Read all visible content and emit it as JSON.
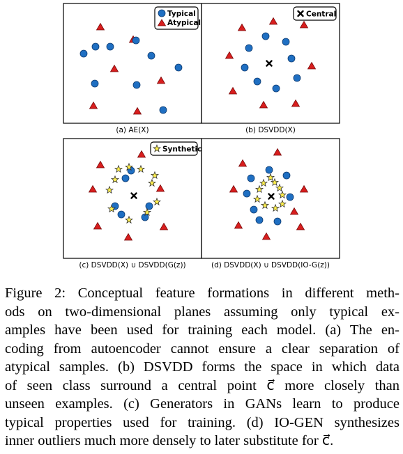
{
  "colors": {
    "typical": "#1f6fc2",
    "atypical": "#d81e1e",
    "synthetic": "#fff04d",
    "central": "#000000"
  },
  "panels": [
    {
      "label": "(a) AE(X)",
      "legend": [
        {
          "symbol": "circle",
          "text": "Typical"
        },
        {
          "symbol": "triangle",
          "text": "Atypical"
        }
      ],
      "points": {
        "circles": [
          [
            120,
            77
          ],
          [
            158,
            67
          ],
          [
            217,
            80
          ],
          [
            256,
            97
          ],
          [
            136,
            120
          ],
          [
            196,
            122
          ],
          [
            234,
            158
          ],
          [
            195,
            58
          ],
          [
            137,
            67
          ]
        ],
        "triangles": [
          [
            144,
            39
          ],
          [
            229,
            35
          ],
          [
            191,
            57
          ],
          [
            164,
            99
          ],
          [
            231,
            116
          ],
          [
            134,
            152
          ],
          [
            197,
            160
          ]
        ],
        "stars": [],
        "cross": null
      }
    },
    {
      "label": "(b) DSVDD(X)",
      "legend": [
        {
          "symbol": "cross",
          "text": "Central"
        }
      ],
      "points": {
        "circles": [
          [
            381,
            52
          ],
          [
            410,
            60
          ],
          [
            357,
            69
          ],
          [
            418,
            84
          ],
          [
            351,
            97
          ],
          [
            426,
            112
          ],
          [
            369,
            117
          ],
          [
            396,
            127
          ]
        ],
        "triangles": [
          [
            347,
            40
          ],
          [
            436,
            36
          ],
          [
            329,
            80
          ],
          [
            447,
            95
          ],
          [
            334,
            131
          ],
          [
            378,
            151
          ],
          [
            424,
            149
          ],
          [
            392,
            31
          ]
        ],
        "stars": [],
        "cross": [
          386,
          91
        ]
      }
    },
    {
      "label": "(c) DSVDD(X) ∪ DSVDD(G(z))",
      "legend": [
        {
          "symbol": "star",
          "text": "Synthetic"
        }
      ],
      "points": {
        "circles": [
          [
            174,
            308
          ],
          [
            208,
            312
          ],
          [
            188,
            245
          ],
          [
            214,
            296
          ],
          [
            165,
            296
          ],
          [
            180,
            256
          ]
        ],
        "triangles": [
          [
            133,
            272
          ],
          [
            230,
            271
          ],
          [
            140,
            325
          ],
          [
            235,
            326
          ],
          [
            184,
            341
          ],
          [
            144,
            237
          ],
          [
            203,
            222
          ]
        ],
        "stars": [
          [
            170,
            243
          ],
          [
            202,
            243
          ],
          [
            218,
            263
          ],
          [
            225,
            290
          ],
          [
            211,
            305
          ],
          [
            185,
            316
          ],
          [
            160,
            300
          ],
          [
            157,
            273
          ],
          [
            165,
            258
          ],
          [
            185,
            240
          ],
          [
            222,
            252
          ]
        ],
        "cross": [
          192,
          281
        ]
      }
    },
    {
      "label": "(d) DSVDD(X) ∪ DSVDD(IO-G(z))",
      "legend": [],
      "points": {
        "circles": [
          [
            386,
            244
          ],
          [
            411,
            252
          ],
          [
            360,
            256
          ],
          [
            416,
            283
          ],
          [
            354,
            278
          ],
          [
            364,
            301
          ],
          [
            398,
            318
          ],
          [
            372,
            316
          ]
        ],
        "triangles": [
          [
            335,
            272
          ],
          [
            436,
            272
          ],
          [
            342,
            324
          ],
          [
            431,
            326
          ],
          [
            382,
            340
          ],
          [
            348,
            235
          ],
          [
            398,
            219
          ],
          [
            422,
            304
          ]
        ],
        "stars": [
          [
            378,
            263
          ],
          [
            394,
            262
          ],
          [
            401,
            270
          ],
          [
            405,
            280
          ],
          [
            405,
            293
          ],
          [
            395,
            299
          ],
          [
            380,
            295
          ],
          [
            369,
            286
          ],
          [
            372,
            272
          ],
          [
            388,
            255
          ]
        ],
        "cross": [
          389,
          282
        ]
      }
    }
  ],
  "caption": {
    "lines": [
      "Figure 2: Conceptual feature formations in different meth-",
      "ods on two-dimensional planes assuming only typical ex-",
      "amples have been used for training each model. (a) The en-",
      "coding from autoencoder cannot ensure a clear separation of",
      "atypical samples. (b) DSVDD forms the space in which data",
      "of seen class surround a central point c⃗ more closely than",
      "unseen examples. (c) Generators in GANs learn to produce",
      "typical properties used for training. (d) IO-GEN synthesizes",
      "inner outliers much more densely to later substitute for c⃗."
    ]
  }
}
